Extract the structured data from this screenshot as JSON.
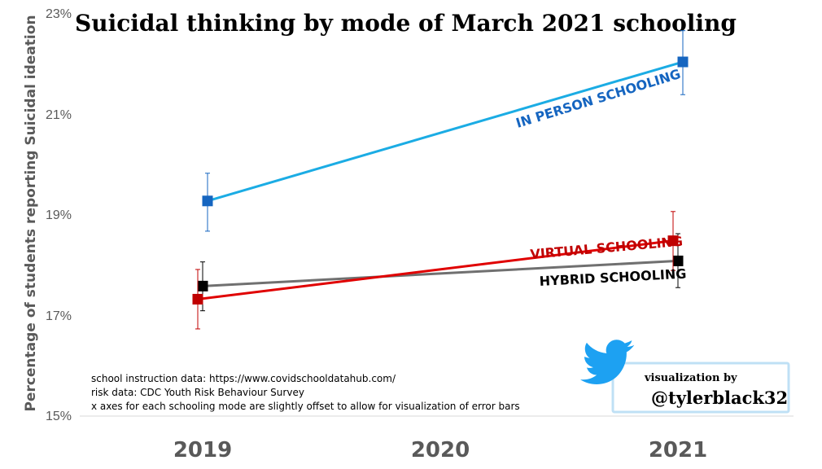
{
  "chart_data": {
    "type": "line",
    "title": "Suicidal thinking by mode of March 2021 schooling",
    "ylabel": "Percentage of students reporting Suicidal ideation",
    "xlabel": "",
    "x_ticks": [
      "2019",
      "2020",
      "2021"
    ],
    "y_ticks": [
      "15%",
      "17%",
      "19%",
      "21%",
      "23%"
    ],
    "ylim": [
      15,
      23
    ],
    "series": [
      {
        "name": "IN PERSON SCHOOLING",
        "color": "#1BACE4",
        "marker_color": "#1565C0",
        "points": [
          {
            "x": 2019,
            "y": 19.27,
            "lo": 18.67,
            "hi": 19.82
          },
          {
            "x": 2021,
            "y": 22.03,
            "hi": 22.65,
            "lo": 21.38
          }
        ]
      },
      {
        "name": "VIRTUAL SCHOOLING",
        "color": "#E00000",
        "marker_color": "#C00000",
        "points": [
          {
            "x": 2019,
            "y": 17.32,
            "lo": 16.73,
            "hi": 17.91
          },
          {
            "x": 2021,
            "y": 18.48,
            "lo": 17.89,
            "hi": 19.06
          }
        ]
      },
      {
        "name": "HYBRID SCHOOLING",
        "color": "#707070",
        "marker_color": "#000000",
        "points": [
          {
            "x": 2019,
            "y": 17.58,
            "lo": 17.09,
            "hi": 18.06
          },
          {
            "x": 2021,
            "y": 18.08,
            "lo": 17.55,
            "hi": 18.62
          }
        ]
      }
    ],
    "grid": false
  },
  "notes": [
    "school instruction data: https://www.covidschooldatahub.com/",
    "risk data: CDC Youth Risk Behaviour Survey",
    "x axes for each schooling mode are slightly offset to allow for visualization of error bars"
  ],
  "credit": {
    "line1": "visualization by",
    "line2": "@tylerblack32",
    "icon": "twitter-bird-icon"
  }
}
